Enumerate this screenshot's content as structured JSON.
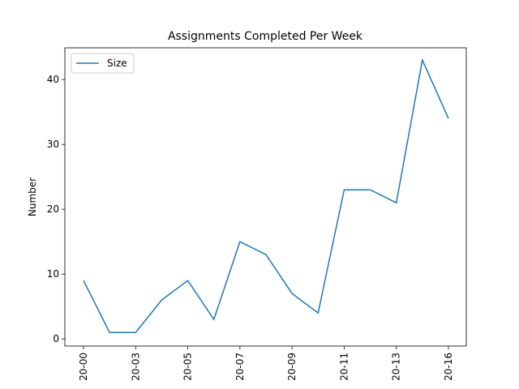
{
  "chart_data": {
    "type": "line",
    "title": "Assignments Completed Per Week",
    "ylabel": "Number",
    "categories": [
      "20-00",
      null,
      "20-03",
      null,
      "20-05",
      null,
      "20-07",
      null,
      "20-09",
      null,
      "20-11",
      null,
      "20-13",
      null,
      "20-16"
    ],
    "series": [
      {
        "name": "Size",
        "color": "#1f77b4",
        "values": [
          9,
          1,
          1,
          6,
          9,
          3,
          15,
          13,
          7,
          4,
          23,
          23,
          21,
          43,
          34
        ]
      }
    ],
    "ylim": [
      -1.1,
      44.9
    ],
    "yticks": [
      0,
      10,
      20,
      30,
      40
    ],
    "legend": "upper left"
  }
}
